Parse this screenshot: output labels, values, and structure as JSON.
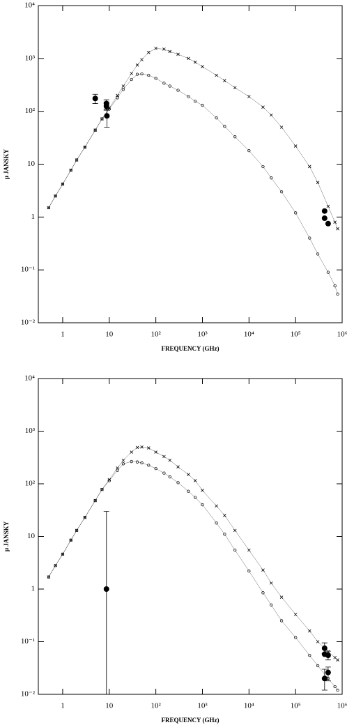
{
  "chart_data": [
    {
      "type": "scatter",
      "x_label": "FREQUENCY (GHz)",
      "y_label": "μ JANSKY",
      "xlog": true,
      "ylog": true,
      "xlim": [
        0.3,
        1000000
      ],
      "ylim": [
        0.01,
        10000
      ],
      "xticks": [
        1,
        10,
        {
          "value": 100,
          "label": "10²"
        },
        {
          "value": 1000,
          "label": "10³"
        },
        {
          "value": 10000,
          "label": "10⁴"
        },
        {
          "value": 100000,
          "label": "10⁵"
        },
        {
          "value": 1000000,
          "label": "10⁶"
        }
      ],
      "yticks": [
        {
          "value": 0.01,
          "label": "10⁻²"
        },
        {
          "value": 0.1,
          "label": "10⁻¹"
        },
        1,
        10,
        {
          "value": 100,
          "label": "10²"
        },
        {
          "value": 1000,
          "label": "10³"
        },
        {
          "value": 10000,
          "label": "10⁴"
        }
      ],
      "x": [
        0.5,
        0.7,
        1,
        1.5,
        2,
        3,
        5,
        7,
        10,
        15,
        20,
        30,
        40,
        50,
        70,
        100,
        150,
        200,
        300,
        500,
        700,
        1000,
        2000,
        3000,
        5000,
        10000,
        20000,
        30000,
        50000,
        100000,
        200000,
        300000,
        500000,
        700000,
        800000
      ],
      "series": [
        {
          "marker": "cross",
          "color": "#000000",
          "values": [
            1.5,
            2.5,
            4.2,
            7.7,
            12,
            21,
            44,
            72,
            115,
            200,
            300,
            520,
            750,
            950,
            1300,
            1550,
            1500,
            1350,
            1200,
            1000,
            850,
            700,
            480,
            380,
            280,
            190,
            120,
            85,
            50,
            22,
            9,
            4.5,
            1.6,
            0.8,
            0.6
          ]
        },
        {
          "marker": "circle",
          "color": "#000000",
          "values": [
            1.5,
            2.5,
            4.2,
            7.7,
            12,
            21,
            44,
            72,
            110,
            180,
            260,
            400,
            500,
            510,
            480,
            420,
            340,
            300,
            250,
            190,
            155,
            130,
            75,
            52,
            33,
            18,
            9,
            5.5,
            3,
            1.2,
            0.4,
            0.2,
            0.09,
            0.05,
            0.035
          ]
        }
      ],
      "points": {
        "color": "#000000",
        "x": [
          5,
          8.7,
          8.7,
          8.9,
          420000,
          420000,
          500000
        ],
        "y": [
          175,
          140,
          125,
          82,
          1.3,
          0.95,
          0.75
        ],
        "y_low": [
          140,
          110,
          105,
          50,
          null,
          null,
          null
        ],
        "y_high": [
          210,
          165,
          150,
          110,
          null,
          null,
          null
        ]
      }
    },
    {
      "type": "scatter",
      "x_label": "FREQUENCY (GHz)",
      "y_label": "μ JANSKY",
      "xlog": true,
      "ylog": true,
      "xlim": [
        0.3,
        1000000
      ],
      "ylim": [
        0.01,
        10000
      ],
      "xticks": [
        1,
        10,
        {
          "value": 100,
          "label": "10²"
        },
        {
          "value": 1000,
          "label": "10³"
        },
        {
          "value": 10000,
          "label": "10⁴"
        },
        {
          "value": 100000,
          "label": "10⁵"
        },
        {
          "value": 1000000,
          "label": "10⁶"
        }
      ],
      "yticks": [
        {
          "value": 0.01,
          "label": "10⁻²"
        },
        {
          "value": 0.1,
          "label": "10⁻¹"
        },
        1,
        10,
        {
          "value": 100,
          "label": "10²"
        },
        {
          "value": 1000,
          "label": "10³"
        },
        {
          "value": 10000,
          "label": "10⁴"
        }
      ],
      "x": [
        0.5,
        0.7,
        1,
        1.5,
        2,
        3,
        5,
        7,
        10,
        15,
        20,
        30,
        40,
        50,
        70,
        100,
        150,
        200,
        300,
        500,
        700,
        1000,
        2000,
        3000,
        5000,
        10000,
        20000,
        30000,
        50000,
        100000,
        200000,
        300000,
        500000,
        700000,
        800000
      ],
      "series": [
        {
          "marker": "cross",
          "color": "#000000",
          "values": [
            1.7,
            2.8,
            4.6,
            8.5,
            13,
            23,
            48,
            78,
            120,
            200,
            280,
            400,
            490,
            500,
            480,
            400,
            330,
            280,
            210,
            150,
            115,
            75,
            38,
            25,
            13,
            5.5,
            2.3,
            1.3,
            0.7,
            0.33,
            0.16,
            0.1,
            0.065,
            0.05,
            0.045
          ]
        },
        {
          "marker": "circle",
          "color": "#000000",
          "values": [
            1.7,
            2.8,
            4.6,
            8.5,
            13,
            23,
            48,
            78,
            115,
            180,
            240,
            265,
            260,
            250,
            225,
            195,
            160,
            135,
            105,
            72,
            55,
            40,
            18,
            11,
            5.5,
            2.2,
            0.85,
            0.5,
            0.25,
            0.12,
            0.055,
            0.035,
            0.02,
            0.014,
            0.012
          ]
        }
      ],
      "points": {
        "color": "#000000",
        "x": [
          8.7,
          420000,
          420000,
          500000,
          420000,
          500000
        ],
        "y": [
          1,
          0.075,
          0.058,
          0.055,
          0.02,
          0.026
        ],
        "y_low": [
          0.01,
          0.06,
          null,
          0.045,
          0.012,
          0.018
        ],
        "y_high": [
          30,
          0.095,
          null,
          0.066,
          0.03,
          0.033
        ]
      }
    }
  ]
}
